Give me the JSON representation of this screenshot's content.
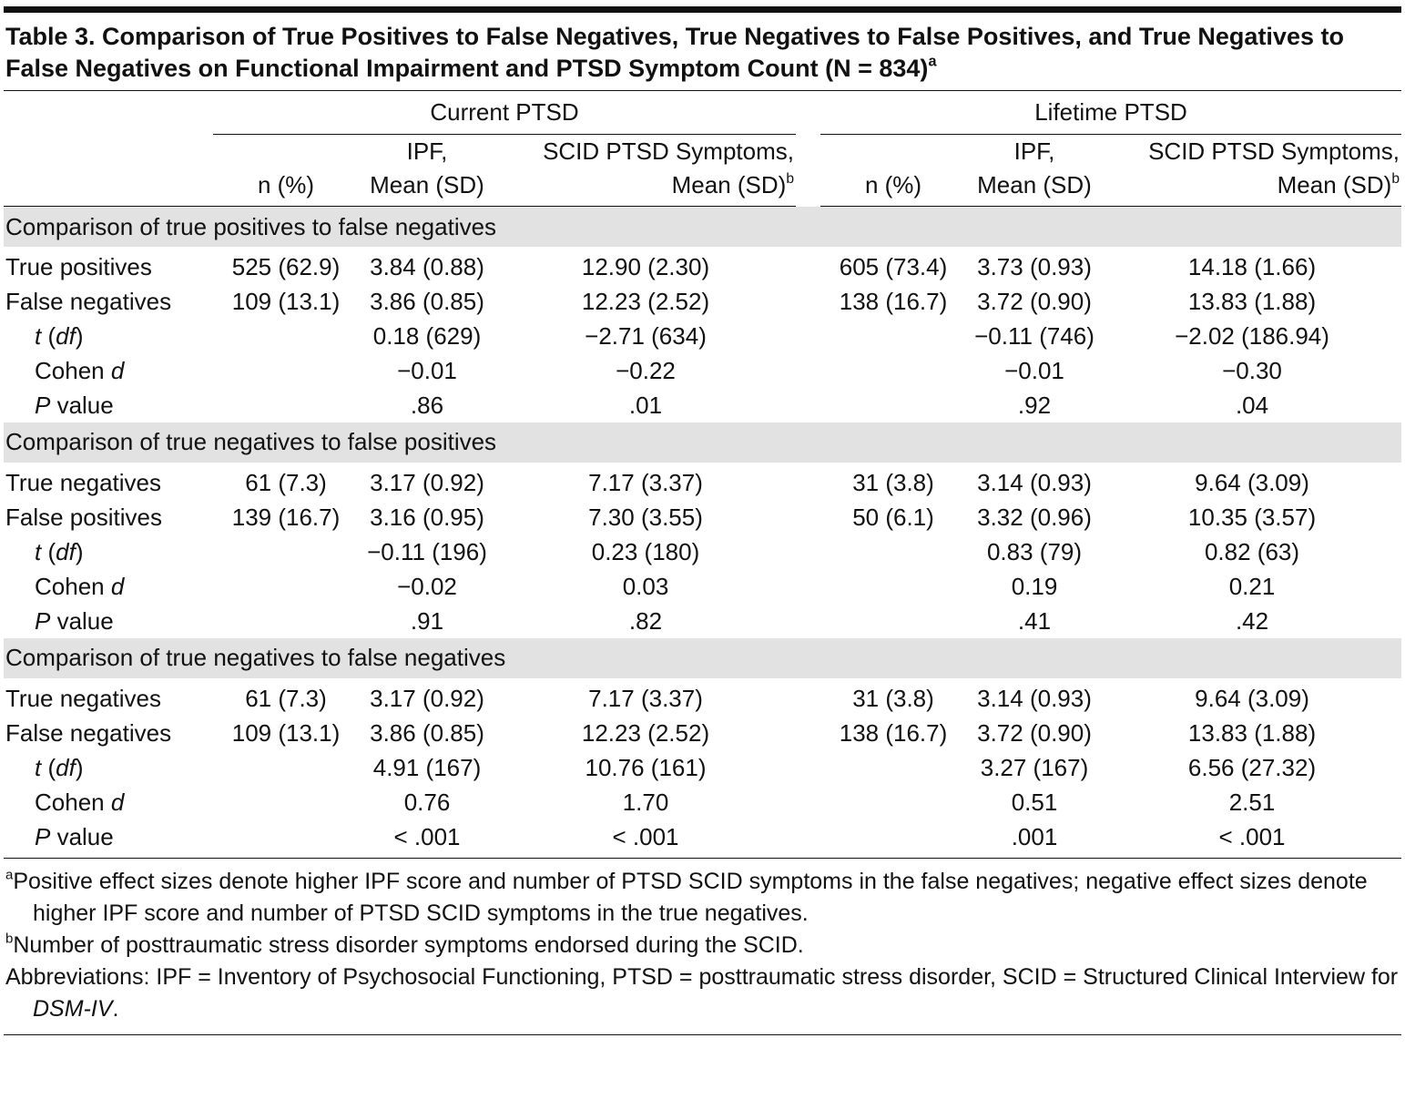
{
  "header": {
    "title": "Table 3. Comparison of True Positives to False Negatives, True Negatives to False Positives, and True Negatives to False Negatives on Functional Impairment and PTSD Symptom Count (N = 834)",
    "title_note": "a"
  },
  "table": {
    "groups": [
      "Current PTSD",
      "Lifetime PTSD"
    ],
    "columns": [
      {
        "lines": [
          "n (%)"
        ]
      },
      {
        "lines": [
          "IPF,",
          "Mean (SD)"
        ]
      },
      {
        "lines": [
          "SCID PTSD Symptoms,",
          "Mean (SD)"
        ],
        "note": "b"
      }
    ],
    "sections": [
      {
        "heading": "Comparison of true positives to false negatives",
        "rows": [
          {
            "label": [
              {
                "text": "True positives"
              }
            ],
            "cells": [
              "525 (62.9)",
              "3.84 (0.88)",
              "12.90 (2.30)",
              "605 (73.4)",
              "3.73 (0.93)",
              "14.18 (1.66)"
            ]
          },
          {
            "label": [
              {
                "text": "False negatives"
              }
            ],
            "cells": [
              "109 (13.1)",
              "3.86 (0.85)",
              "12.23 (2.52)",
              "138 (16.7)",
              "3.72 (0.90)",
              "13.83 (1.88)"
            ]
          },
          {
            "label": [
              {
                "text": "t",
                "italic": true
              },
              {
                "text": " ("
              },
              {
                "text": "df",
                "italic": true
              },
              {
                "text": ")"
              }
            ],
            "indent": true,
            "cells": [
              null,
              "0.18 (629)",
              "−2.71 (634)",
              null,
              "−0.11 (746)",
              "−2.02 (186.94)"
            ]
          },
          {
            "label": [
              {
                "text": "Cohen "
              },
              {
                "text": "d",
                "italic": true
              }
            ],
            "indent": true,
            "cells": [
              null,
              "−0.01",
              "−0.22",
              null,
              "−0.01",
              "−0.30"
            ]
          },
          {
            "label": [
              {
                "text": "P",
                "italic": true
              },
              {
                "text": " value"
              }
            ],
            "indent": true,
            "cells": [
              null,
              ".86",
              ".01",
              null,
              ".92",
              ".04"
            ]
          }
        ]
      },
      {
        "heading": "Comparison of true negatives to false positives",
        "rows": [
          {
            "label": [
              {
                "text": "True negatives"
              }
            ],
            "cells": [
              "61 (7.3)",
              "3.17 (0.92)",
              "7.17 (3.37)",
              "31 (3.8)",
              "3.14 (0.93)",
              "9.64 (3.09)"
            ]
          },
          {
            "label": [
              {
                "text": "False positives"
              }
            ],
            "cells": [
              "139 (16.7)",
              "3.16 (0.95)",
              "7.30 (3.55)",
              "50 (6.1)",
              "3.32 (0.96)",
              "10.35 (3.57)"
            ]
          },
          {
            "label": [
              {
                "text": "t",
                "italic": true
              },
              {
                "text": " ("
              },
              {
                "text": "df",
                "italic": true
              },
              {
                "text": ")"
              }
            ],
            "indent": true,
            "cells": [
              null,
              "−0.11 (196)",
              "0.23 (180)",
              null,
              "0.83 (79)",
              "0.82 (63)"
            ]
          },
          {
            "label": [
              {
                "text": "Cohen "
              },
              {
                "text": "d",
                "italic": true
              }
            ],
            "indent": true,
            "cells": [
              null,
              "−0.02",
              "0.03",
              null,
              "0.19",
              "0.21"
            ]
          },
          {
            "label": [
              {
                "text": "P",
                "italic": true
              },
              {
                "text": " value"
              }
            ],
            "indent": true,
            "cells": [
              null,
              ".91",
              ".82",
              null,
              ".41",
              ".42"
            ]
          }
        ]
      },
      {
        "heading": "Comparison of true negatives to false negatives",
        "rows": [
          {
            "label": [
              {
                "text": "True negatives"
              }
            ],
            "cells": [
              "61 (7.3)",
              "3.17 (0.92)",
              "7.17 (3.37)",
              "31 (3.8)",
              "3.14 (0.93)",
              "9.64 (3.09)"
            ]
          },
          {
            "label": [
              {
                "text": "False negatives"
              }
            ],
            "cells": [
              "109 (13.1)",
              "3.86 (0.85)",
              "12.23 (2.52)",
              "138 (16.7)",
              "3.72 (0.90)",
              "13.83 (1.88)"
            ]
          },
          {
            "label": [
              {
                "text": "t",
                "italic": true
              },
              {
                "text": " ("
              },
              {
                "text": "df",
                "italic": true
              },
              {
                "text": ")"
              }
            ],
            "indent": true,
            "cells": [
              null,
              "4.91 (167)",
              "10.76 (161)",
              null,
              "3.27 (167)",
              "6.56 (27.32)"
            ]
          },
          {
            "label": [
              {
                "text": "Cohen "
              },
              {
                "text": "d",
                "italic": true
              }
            ],
            "indent": true,
            "cells": [
              null,
              "0.76",
              "1.70",
              null,
              "0.51",
              "2.51"
            ]
          },
          {
            "label": [
              {
                "text": "P",
                "italic": true
              },
              {
                "text": " value"
              }
            ],
            "indent": true,
            "cells": [
              null,
              "< .001",
              "< .001",
              null,
              ".001",
              "< .001"
            ]
          }
        ]
      }
    ]
  },
  "footnotes": [
    {
      "marker": "a",
      "segments": [
        {
          "text": "Positive effect sizes denote higher IPF score and number of PTSD SCID symptoms in the false negatives; negative effect sizes denote higher IPF score and number of PTSD SCID symptoms in the true negatives."
        }
      ]
    },
    {
      "marker": "b",
      "segments": [
        {
          "text": "Number of posttraumatic stress disorder symptoms endorsed during the SCID."
        }
      ]
    },
    {
      "segments": [
        {
          "text": "Abbreviations: IPF = Inventory of Psychosocial Functioning, PTSD = posttraumatic stress disorder, SCID = Structured Clinical Interview for "
        },
        {
          "text": "DSM-IV",
          "italic": true
        },
        {
          "text": "."
        }
      ]
    }
  ]
}
